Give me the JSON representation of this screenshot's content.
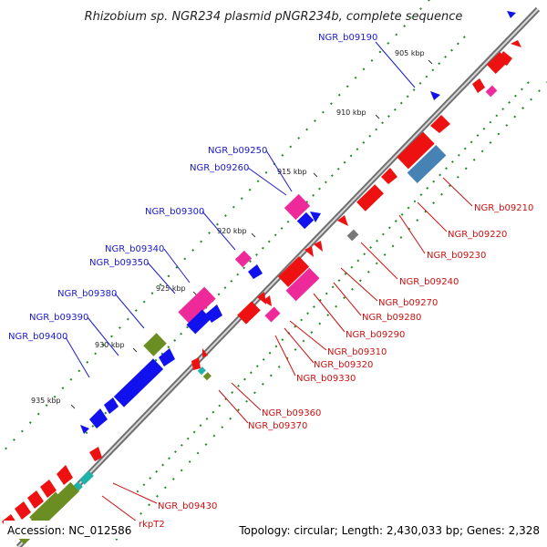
{
  "title": "Rhizobium sp. NGR234 plasmid pNGR234b, complete sequence",
  "footer": {
    "accession": "Accession: NC_012586",
    "topology": "Topology: circular; Length: 2,430,033 bp; Genes: 2,328"
  },
  "ticks": [
    "905 kbp",
    "910 kbp",
    "915 kbp",
    "920 kbp",
    "925 kbp",
    "930 kbp",
    "935 kbp"
  ],
  "colors": {
    "backbone": "#8a8a8a",
    "forward_label": "#1a1acc",
    "reverse_label": "#cc1111",
    "gene_red": "#ee1111",
    "gene_blue": "#1111ee",
    "gene_pink": "#ee2a9a",
    "gene_olive": "#6b8e23",
    "gene_steel": "#4682b4",
    "gene_gray": "#777777",
    "gene_cyan": "#20b2aa"
  },
  "labels": {
    "forward": [
      "NGR_b09190",
      "NGR_b09250",
      "NGR_b09260",
      "NGR_b09300",
      "NGR_b09340",
      "NGR_b09350",
      "NGR_b09380",
      "NGR_b09390",
      "NGR_b09400"
    ],
    "reverse": [
      "NGR_b09210",
      "NGR_b09220",
      "NGR_b09230",
      "NGR_b09240",
      "NGR_b09270",
      "NGR_b09280",
      "NGR_b09290",
      "NGR_b09310",
      "NGR_b09320",
      "NGR_b09330",
      "NGR_b09360",
      "NGR_b09370",
      "NGR_b09430",
      "rkpT2"
    ]
  }
}
